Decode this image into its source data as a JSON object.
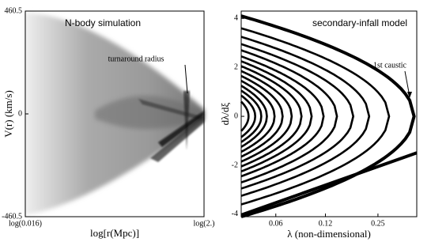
{
  "chart_data": [
    {
      "type": "density",
      "title": "N-body simulation",
      "annotation": "turnaround radius",
      "xlabel": "log[r(Mpc)]",
      "ylabel": "V(r) (km/s)",
      "xlim": [
        -1.796,
        0.301
      ],
      "xticks": [
        {
          "value": -1.796,
          "label": "log(0.016)"
        },
        {
          "value": 0.301,
          "label": "log(2.)"
        }
      ],
      "ylim": [
        -460.5,
        460.5
      ],
      "yticks": [
        460.5,
        0,
        -460.5
      ]
    },
    {
      "type": "caustic",
      "title": "secondary-infall model",
      "annotation": "1st caustic",
      "xlabel": "λ (non-dimensional)",
      "ylabel": "dλ/dξ",
      "xscale": "log",
      "xlim": [
        0.037,
        0.43
      ],
      "xticks": [
        0.06,
        0.12,
        0.25
      ],
      "ylim": [
        -4.1,
        4.3
      ],
      "yticks": [
        4,
        2,
        0,
        -2,
        -4
      ],
      "streams": [
        {
          "caustic": 0.414,
          "v_max": 4.1
        },
        {
          "caustic": 0.292,
          "v_max": 3.6
        },
        {
          "caustic": 0.221,
          "v_max": 3.25
        },
        {
          "caustic": 0.177,
          "v_max": 2.95
        },
        {
          "caustic": 0.141,
          "v_max": 2.7
        },
        {
          "caustic": 0.117,
          "v_max": 2.45
        },
        {
          "caustic": 0.099,
          "v_max": 2.25
        },
        {
          "caustic": 0.086,
          "v_max": 2.05
        },
        {
          "caustic": 0.075,
          "v_max": 1.85
        },
        {
          "caustic": 0.066,
          "v_max": 1.65
        },
        {
          "caustic": 0.059,
          "v_max": 1.45
        },
        {
          "caustic": 0.053,
          "v_max": 1.25
        },
        {
          "caustic": 0.049,
          "v_max": 1.05
        },
        {
          "caustic": 0.045,
          "v_max": 0.85
        },
        {
          "caustic": 0.041,
          "v_max": 0.6
        }
      ],
      "infall": {
        "x": [
          0.037,
          0.43
        ],
        "y": [
          -4.03,
          -1.49
        ]
      }
    }
  ]
}
